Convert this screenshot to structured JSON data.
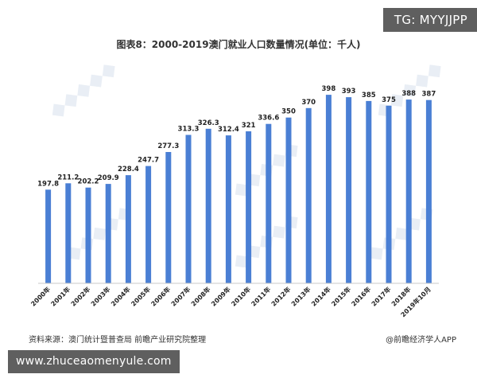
{
  "overlay": {
    "tg_text": "TG: MYYJJPP",
    "url_text": "www.zhuceaomenyule.com"
  },
  "colors": {
    "bar": "#4a7fd4",
    "axis": "#c8c8c8",
    "watermark": "#e9eef5"
  },
  "footer": {
    "source": "资料来源：澳门统计暨普查局 前瞻产业研究院整理",
    "credit": "@前瞻经济学人APP"
  },
  "chart_data": {
    "type": "bar",
    "title": "图表8：2000-2019澳门就业人口数量情况(单位：千人)",
    "categories": [
      "2000年",
      "2001年",
      "2002年",
      "2003年",
      "2004年",
      "2005年",
      "2006年",
      "2007年",
      "2008年",
      "2009年",
      "2010年",
      "2011年",
      "2012年",
      "2013年",
      "2014年",
      "2015年",
      "2016年",
      "2017年",
      "2018年",
      "2019年10月"
    ],
    "values": [
      197.8,
      211.2,
      202.2,
      209.9,
      228.4,
      247.7,
      277.3,
      313.3,
      326.3,
      312.4,
      321,
      336.6,
      350,
      370,
      398,
      393,
      385,
      375,
      388,
      387
    ],
    "value_labels": [
      "197.8",
      "211.2",
      "202.2",
      "209.9",
      "228.4",
      "247.7",
      "277.3",
      "313.3",
      "326.3",
      "312.4",
      "321",
      "336.6",
      "350",
      "370",
      "398",
      "393",
      "385",
      "375",
      "388",
      "387"
    ],
    "xlabel": "",
    "ylabel": "",
    "ylim": [
      0,
      410
    ],
    "grid": false,
    "legend": "none"
  }
}
